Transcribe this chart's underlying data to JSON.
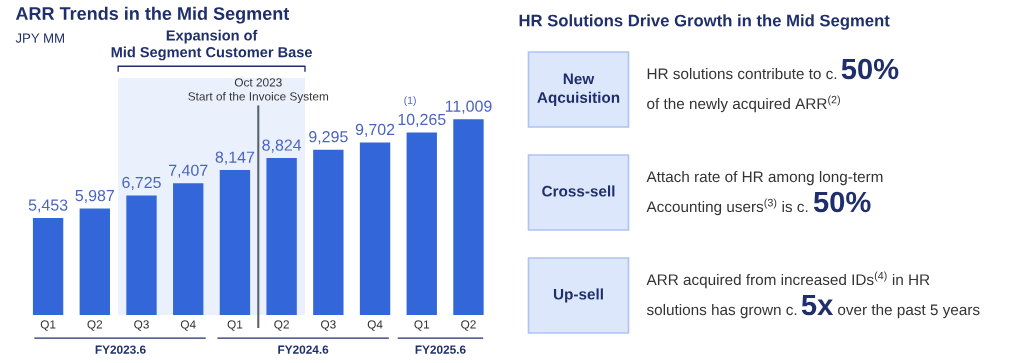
{
  "chart_data": [
    {
      "type": "bar",
      "title": "ARR Trends in the Mid Segment",
      "subtitle": "JPY MM",
      "categories": [
        "Q1",
        "Q2",
        "Q3",
        "Q4",
        "Q1",
        "Q2",
        "Q3",
        "Q4",
        "Q1",
        "Q2"
      ],
      "values": [
        5453,
        5987,
        6725,
        7407,
        8147,
        8824,
        9295,
        9702,
        10265,
        11009
      ],
      "value_labels": [
        "5,453",
        "5,987",
        "6,725",
        "7,407",
        "8,147",
        "8,824",
        "9,295",
        "9,702",
        "10,265",
        "11,009"
      ],
      "color": "#3366d9",
      "tick_labels": "x",
      "grid": false,
      "annotations": [
        "Expansion of\nMid Segment Customer Base",
        "Oct 2023\nStart of the Invoice System",
        "(1)",
        "FY2023.6",
        "FY2024.6",
        "FY2025.6"
      ]
    },
    {
      "type": "other",
      "title": "HR Solutions Drive Growth in the Mid Segment",
      "annotations": [
        "New\nAqcuisition",
        "Cross-sell",
        "Up-sell",
        "HR solutions contribute to c.",
        "50%",
        "of the newly acquired ARR$^{(2)}$",
        "Attach rate of HR among long-term",
        "Accounting users$^{(3)}$ is c.",
        "50%",
        "ARR acquired from increased IDs$^{(4)}$ in HR",
        "solutions has grown c.",
        "5x",
        "over the past 5 years"
      ]
    }
  ]
}
